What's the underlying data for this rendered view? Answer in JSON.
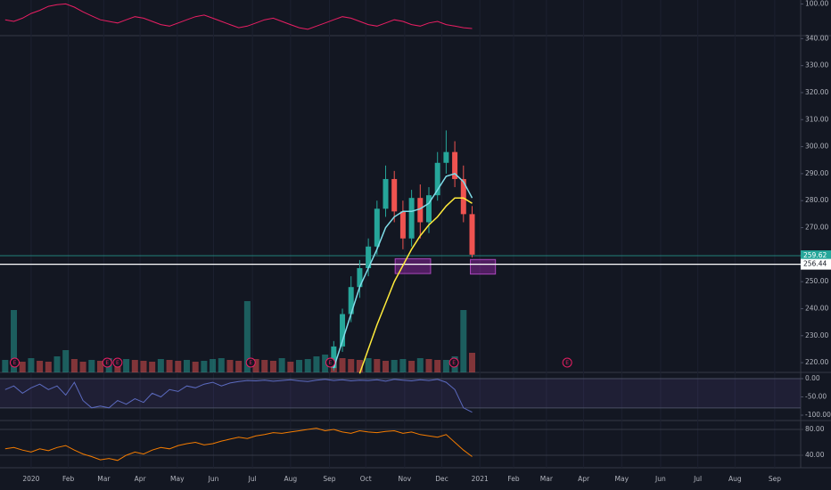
{
  "x_axis": {
    "xlim": [
      -3.6,
      89
    ],
    "xticks": [
      {
        "value": 0,
        "label": "2020"
      },
      {
        "value": 4.3,
        "label": "Feb"
      },
      {
        "value": 8.4,
        "label": "Mar"
      },
      {
        "value": 12.6,
        "label": "Apr"
      },
      {
        "value": 16.9,
        "label": "May"
      },
      {
        "value": 21.1,
        "label": "Jun"
      },
      {
        "value": 25.6,
        "label": "Jul"
      },
      {
        "value": 30,
        "label": "Aug"
      },
      {
        "value": 34.5,
        "label": "Sep"
      },
      {
        "value": 38.7,
        "label": "Oct"
      },
      {
        "value": 43.2,
        "label": "Nov"
      },
      {
        "value": 47.5,
        "label": "Dec"
      },
      {
        "value": 51.9,
        "label": "2021"
      },
      {
        "value": 55.8,
        "label": "Feb"
      },
      {
        "value": 59.6,
        "label": "Mar"
      },
      {
        "value": 63.9,
        "label": "Apr"
      },
      {
        "value": 68.3,
        "label": "May"
      },
      {
        "value": 72.8,
        "label": "Jun"
      },
      {
        "value": 77.1,
        "label": "Jul"
      },
      {
        "value": 81.4,
        "label": "Aug"
      },
      {
        "value": 86,
        "label": "Sep"
      }
    ]
  },
  "chart_data": [
    {
      "type": "line",
      "color": "#e91e63",
      "ylim": [
        60,
        105
      ],
      "yticks": [
        {
          "value": 100,
          "label": "100.00"
        }
      ],
      "x": [
        -3,
        -2,
        -1,
        0,
        1,
        2,
        3,
        4,
        5,
        6,
        7,
        8,
        9,
        10,
        11,
        12,
        13,
        14,
        15,
        16,
        17,
        18,
        19,
        20,
        21,
        22,
        23,
        24,
        25,
        26,
        27,
        28,
        29,
        30,
        31,
        32,
        33,
        34,
        35,
        36,
        37,
        38,
        39,
        40,
        41,
        42,
        43,
        44,
        45,
        46,
        47,
        48,
        49,
        50,
        51
      ],
      "values": [
        80,
        78,
        82,
        88,
        92,
        97,
        99,
        100,
        96,
        90,
        85,
        80,
        78,
        76,
        80,
        84,
        82,
        78,
        74,
        72,
        76,
        80,
        84,
        86,
        82,
        78,
        74,
        70,
        72,
        76,
        80,
        82,
        78,
        74,
        70,
        68,
        72,
        76,
        80,
        84,
        82,
        78,
        74,
        72,
        76,
        80,
        78,
        74,
        72,
        76,
        78,
        74,
        72,
        70,
        69
      ]
    },
    {
      "type": "candlestick",
      "ylim": [
        216.4,
        341.1
      ],
      "up_color": "#26a69a",
      "down_color": "#ef5350",
      "yticks": [
        {
          "value": 340,
          "label": "340.00"
        },
        {
          "value": 330,
          "label": "330.00"
        },
        {
          "value": 320,
          "label": "320.00"
        },
        {
          "value": 310,
          "label": "310.00"
        },
        {
          "value": 300,
          "label": "300.00"
        },
        {
          "value": 290,
          "label": "290.00"
        },
        {
          "value": 280,
          "label": "280.00"
        },
        {
          "value": 270,
          "label": "270.00"
        },
        {
          "value": 250,
          "label": "250.00"
        },
        {
          "value": 240,
          "label": "240.00"
        },
        {
          "value": 230,
          "label": "230.00"
        },
        {
          "value": 220,
          "label": "220.00"
        }
      ],
      "x": [
        35,
        36,
        37,
        38,
        39,
        40,
        41,
        42,
        43,
        44,
        45,
        46,
        47,
        48,
        49,
        50,
        51
      ],
      "open": [
        218,
        226,
        238,
        248,
        255,
        263,
        277,
        288,
        276,
        266,
        281,
        272,
        282,
        294,
        298,
        288,
        275
      ],
      "high": [
        228,
        240,
        252,
        258,
        266,
        280,
        293,
        291,
        280,
        284,
        286,
        285,
        298,
        306,
        302,
        293,
        278
      ],
      "low": [
        217,
        224,
        235,
        244,
        252,
        260,
        274,
        272,
        262,
        263,
        266,
        268,
        280,
        290,
        285,
        272,
        259
      ],
      "close": [
        226,
        238,
        248,
        255,
        263,
        277,
        288,
        276,
        266,
        281,
        272,
        282,
        294,
        298,
        288,
        275,
        260
      ],
      "lines": [
        {
          "color": "#80deea",
          "x": [
            35,
            36,
            37,
            38,
            39,
            40,
            41,
            42,
            43,
            44,
            45,
            46,
            47,
            48,
            49,
            50,
            51
          ],
          "values": [
            218,
            228,
            238,
            248,
            255,
            262,
            270,
            274,
            276,
            276,
            277,
            279,
            284,
            289,
            290,
            287,
            281
          ]
        },
        {
          "color": "#ffeb3b",
          "x": [
            38,
            39,
            40,
            41,
            42,
            43,
            44,
            45,
            46,
            47,
            48,
            49,
            50,
            51
          ],
          "values": [
            216,
            225,
            234,
            242,
            250,
            256,
            262,
            267,
            271,
            274,
            278,
            281,
            281,
            279
          ]
        }
      ],
      "volume": {
        "vlim": [
          0,
          100
        ],
        "up_color": "#26a69a",
        "down_color": "#ef5350",
        "x": [
          -3,
          -2,
          -1,
          0,
          1,
          2,
          3,
          4,
          5,
          6,
          7,
          8,
          9,
          10,
          11,
          12,
          13,
          14,
          15,
          16,
          17,
          18,
          19,
          20,
          21,
          22,
          23,
          24,
          25,
          26,
          27,
          28,
          29,
          30,
          31,
          32,
          33,
          34,
          35,
          36,
          37,
          38,
          39,
          40,
          41,
          42,
          43,
          44,
          45,
          46,
          47,
          48,
          49,
          50,
          51
        ],
        "values": [
          14,
          70,
          12,
          16,
          13,
          12,
          18,
          25,
          15,
          12,
          14,
          13,
          16,
          12,
          15,
          14,
          13,
          12,
          15,
          14,
          13,
          14,
          12,
          13,
          15,
          16,
          14,
          13,
          80,
          15,
          14,
          13,
          16,
          12,
          14,
          15,
          18,
          20,
          17,
          16,
          15,
          14,
          16,
          15,
          13,
          14,
          15,
          13,
          16,
          15,
          14,
          14,
          18,
          70,
          22
        ]
      },
      "price_lines": [
        {
          "value": 259.62,
          "label": "259.62",
          "color": "#26a69a"
        },
        {
          "value": 256.44,
          "label": "256.44",
          "color": "#ffffff"
        }
      ],
      "zones": [
        {
          "x": [
            42.1,
            46.2
          ],
          "y": [
            253,
            258.5
          ]
        },
        {
          "x": [
            50.8,
            53.7
          ],
          "y": [
            252.8,
            258.2
          ]
        }
      ],
      "events": [
        {
          "x": -1.9,
          "label": "E"
        },
        {
          "x": 8.8,
          "label": "E"
        },
        {
          "x": 10,
          "label": "E"
        },
        {
          "x": 25.4,
          "label": "E"
        },
        {
          "x": 34.6,
          "label": "E"
        },
        {
          "x": 48.9,
          "label": "E"
        },
        {
          "x": 62,
          "label": "E"
        }
      ]
    },
    {
      "type": "line",
      "color": "#5c6bc0",
      "ylim": [
        -114.6,
        17.1
      ],
      "band": [
        -80,
        0
      ],
      "yticks": [
        {
          "value": 0,
          "label": "0.00"
        },
        {
          "value": -50,
          "label": "-50.00"
        },
        {
          "value": -100,
          "label": "-100.00"
        }
      ],
      "x": [
        -3,
        -2,
        -1,
        0,
        1,
        2,
        3,
        4,
        5,
        6,
        7,
        8,
        9,
        10,
        11,
        12,
        13,
        14,
        15,
        16,
        17,
        18,
        19,
        20,
        21,
        22,
        23,
        24,
        25,
        26,
        27,
        28,
        29,
        30,
        31,
        32,
        33,
        34,
        35,
        36,
        37,
        38,
        39,
        40,
        41,
        42,
        43,
        44,
        45,
        46,
        47,
        48,
        49,
        50,
        51
      ],
      "values": [
        -30,
        -20,
        -40,
        -25,
        -15,
        -30,
        -20,
        -45,
        -10,
        -60,
        -80,
        -75,
        -80,
        -60,
        -70,
        -55,
        -65,
        -40,
        -50,
        -30,
        -35,
        -20,
        -25,
        -15,
        -10,
        -20,
        -12,
        -8,
        -5,
        -6,
        -4,
        -7,
        -5,
        -3,
        -6,
        -8,
        -4,
        -2,
        -5,
        -3,
        -6,
        -4,
        -5,
        -3,
        -7,
        -2,
        -4,
        -6,
        -3,
        -5,
        -2,
        -10,
        -30,
        -80,
        -92
      ]
    },
    {
      "type": "line",
      "color": "#f57c00",
      "ylim": [
        20.7,
        93.8
      ],
      "grid": true,
      "yticks": [
        {
          "value": 80,
          "label": "80.00"
        },
        {
          "value": 40,
          "label": "40.00"
        }
      ],
      "x": [
        -3,
        -2,
        -1,
        0,
        1,
        2,
        3,
        4,
        5,
        6,
        7,
        8,
        9,
        10,
        11,
        12,
        13,
        14,
        15,
        16,
        17,
        18,
        19,
        20,
        21,
        22,
        23,
        24,
        25,
        26,
        27,
        28,
        29,
        30,
        31,
        32,
        33,
        34,
        35,
        36,
        37,
        38,
        39,
        40,
        41,
        42,
        43,
        44,
        45,
        46,
        47,
        48,
        49,
        50,
        51
      ],
      "values": [
        50,
        52,
        48,
        45,
        50,
        47,
        52,
        55,
        48,
        42,
        38,
        33,
        35,
        32,
        40,
        45,
        42,
        48,
        52,
        50,
        55,
        58,
        60,
        56,
        58,
        62,
        65,
        68,
        66,
        70,
        72,
        75,
        74,
        76,
        78,
        80,
        82,
        78,
        80,
        76,
        74,
        78,
        76,
        75,
        77,
        78,
        74,
        76,
        72,
        70,
        68,
        72,
        60,
        48,
        38
      ]
    }
  ]
}
